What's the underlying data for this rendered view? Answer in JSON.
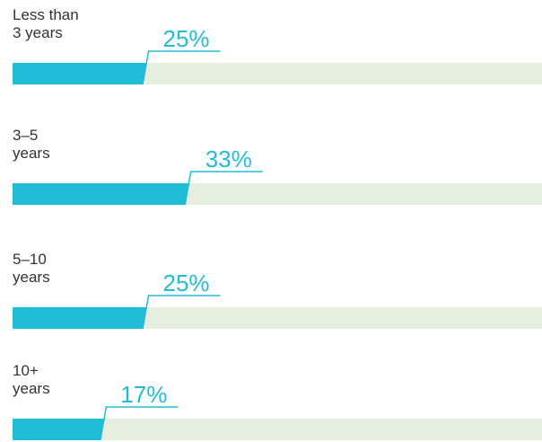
{
  "chart_data": {
    "type": "bar",
    "categories": [
      "Less than\n3 years",
      "3–5\nyears",
      "5–10\nyears",
      "10+\nyears"
    ],
    "values": [
      25,
      33,
      25,
      17
    ],
    "value_labels": [
      "25%",
      "33%",
      "25%",
      "17%"
    ],
    "color": "#22bcd6",
    "track_color": "#e5eedf",
    "xlim": [
      0,
      100
    ]
  }
}
